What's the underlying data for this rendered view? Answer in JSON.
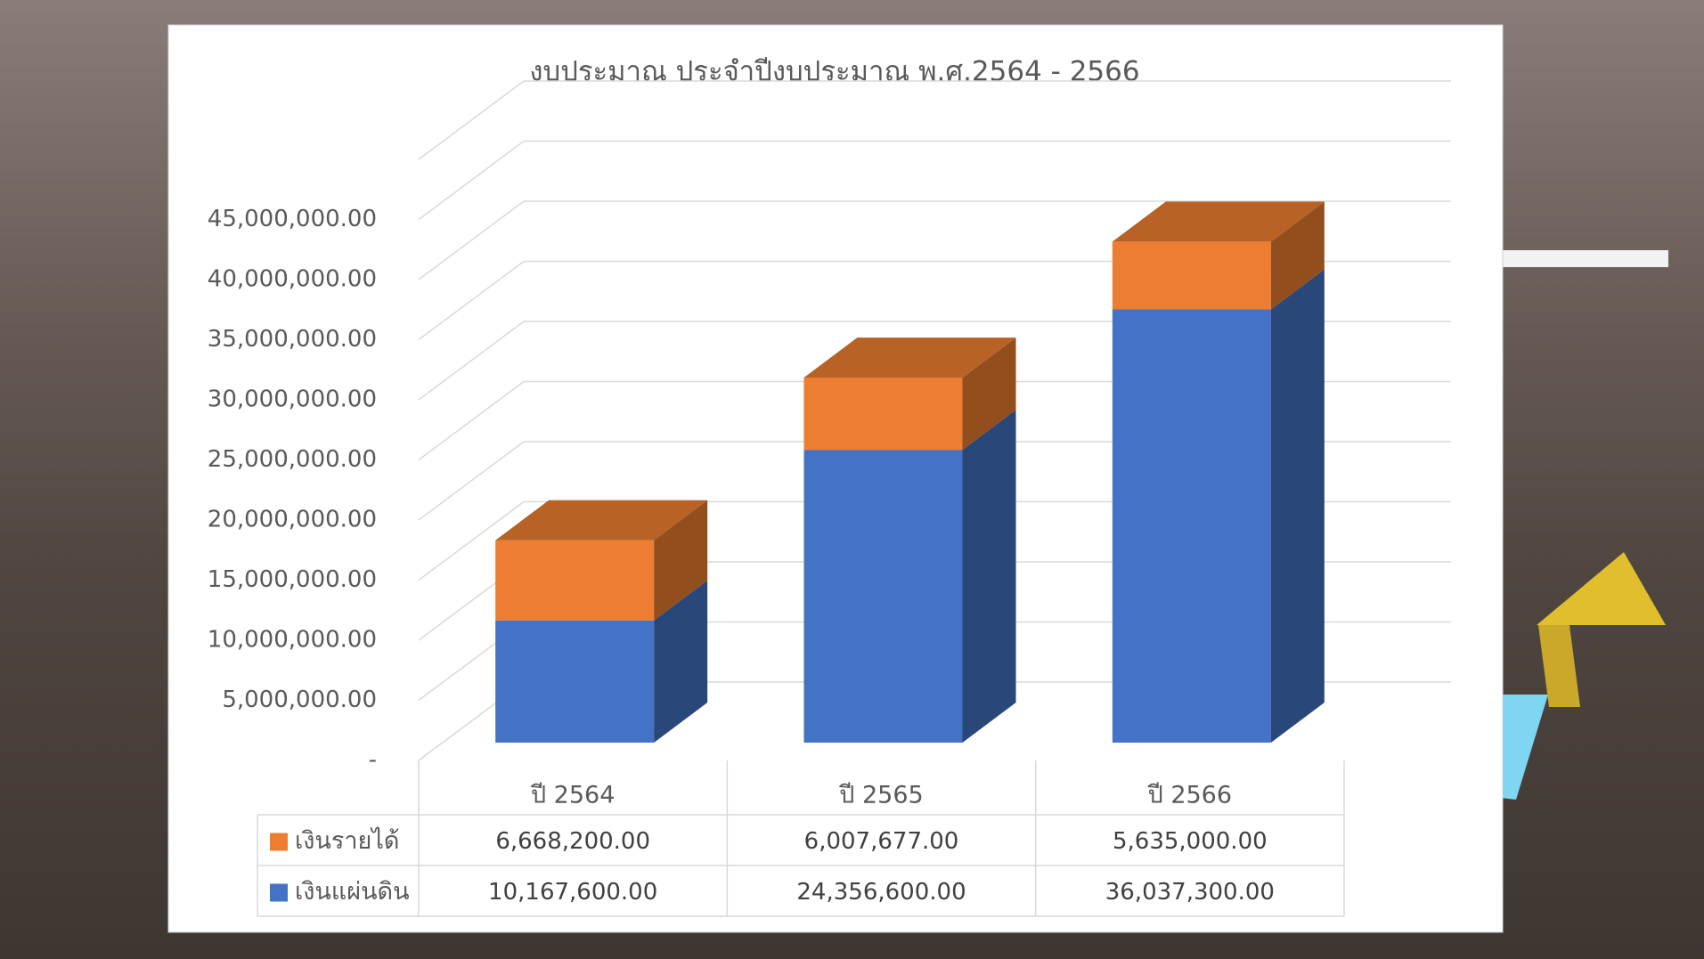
{
  "chart_data": {
    "type": "bar3d_stacked",
    "title": "งบประมาณ ประจำปีงบประมาณ พ.ศ.2564 - 2566",
    "categories": [
      "ปี 2564",
      "ปี 2565",
      "ปี 2566"
    ],
    "series": [
      {
        "name": "เงินแผ่นดิน",
        "color": "#4472c4",
        "values": [
          10167600,
          24356600,
          36037300
        ],
        "value_labels": [
          "10,167,600.00",
          "24,356,600.00",
          "36,037,300.00"
        ]
      },
      {
        "name": "เงินรายได้",
        "color": "#ed7d31",
        "values": [
          6668200,
          6007677,
          5635000
        ],
        "value_labels": [
          "6,668,200.00",
          "6,007,677.00",
          "5,635,000.00"
        ]
      }
    ],
    "ylim": [
      0,
      50000000
    ],
    "yticks": [
      {
        "value": 0,
        "label": "-"
      },
      {
        "value": 5000000,
        "label": "5,000,000.00"
      },
      {
        "value": 10000000,
        "label": "10,000,000.00"
      },
      {
        "value": 15000000,
        "label": "15,000,000.00"
      },
      {
        "value": 20000000,
        "label": "20,000,000.00"
      },
      {
        "value": 25000000,
        "label": "25,000,000.00"
      },
      {
        "value": 30000000,
        "label": "30,000,000.00"
      },
      {
        "value": 35000000,
        "label": "35,000,000.00"
      },
      {
        "value": 40000000,
        "label": "40,000,000.00"
      },
      {
        "value": 45000000,
        "label": "45,000,000.00"
      }
    ],
    "grid": true,
    "stacked": true,
    "data_table": true
  }
}
